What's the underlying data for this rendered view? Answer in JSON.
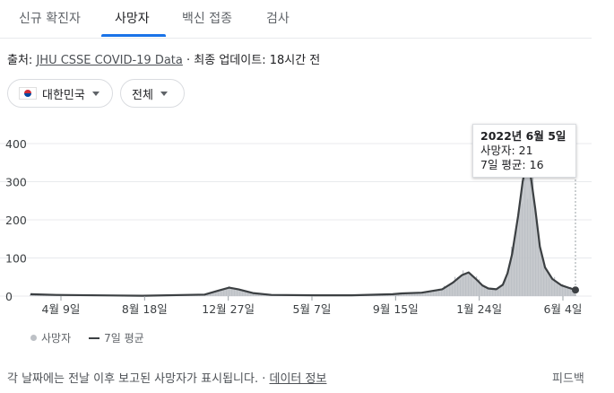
{
  "tabs": [
    {
      "label": "신규 확진자",
      "active": false
    },
    {
      "label": "사망자",
      "active": true
    },
    {
      "label": "백신 접종",
      "active": false
    },
    {
      "label": "검사",
      "active": false
    }
  ],
  "source": {
    "prefix": "출처:",
    "link": "JHU CSSE COVID-19 Data",
    "separator": "·",
    "update_text": "최종 업데이트: 18시간 전"
  },
  "filters": {
    "country": "대한민국",
    "country_icon": "south-korea-flag-icon",
    "range": "전체"
  },
  "tooltip": {
    "date": "2022년 6월 5일",
    "deaths": "사망자: 21",
    "avg": "7일 평균: 16"
  },
  "legend": {
    "daily": "사망자",
    "avg": "7일 평균"
  },
  "footer": {
    "note": "각 날짜에는 전날 이후 보고된 사망자가 표시됩니다.",
    "separator": "·",
    "link": "데이터 정보",
    "feedback": "피드백"
  },
  "colors": {
    "bar": "#bdc1c6",
    "avg_line": "#3c4043",
    "accent": "#1a73e8"
  },
  "chart_data": {
    "type": "area",
    "x_tick_labels": [
      "4월 9일",
      "8월 18일",
      "12월 27일",
      "5월 7일",
      "9월 15일",
      "1월 24일",
      "6월 4일"
    ],
    "y_ticks": [
      0,
      100,
      200,
      300,
      400
    ],
    "ylim": [
      0,
      400
    ],
    "grid": true,
    "legend_position": "bottom-left",
    "series": [
      {
        "name": "사망자",
        "style": "bars"
      },
      {
        "name": "7일 평균",
        "style": "line"
      }
    ],
    "avg_points": [
      [
        "2020-03-01",
        5
      ],
      [
        "2020-04-09",
        3
      ],
      [
        "2020-08-18",
        1
      ],
      [
        "2020-11-20",
        4
      ],
      [
        "2020-12-10",
        14
      ],
      [
        "2020-12-27",
        22
      ],
      [
        "2021-01-10",
        18
      ],
      [
        "2021-02-01",
        8
      ],
      [
        "2021-03-01",
        3
      ],
      [
        "2021-05-07",
        2
      ],
      [
        "2021-07-01",
        2
      ],
      [
        "2021-09-01",
        5
      ],
      [
        "2021-09-15",
        7
      ],
      [
        "2021-10-15",
        9
      ],
      [
        "2021-11-15",
        18
      ],
      [
        "2021-12-01",
        35
      ],
      [
        "2021-12-15",
        55
      ],
      [
        "2021-12-25",
        62
      ],
      [
        "2022-01-05",
        45
      ],
      [
        "2022-01-15",
        28
      ],
      [
        "2022-01-24",
        20
      ],
      [
        "2022-02-05",
        18
      ],
      [
        "2022-02-15",
        30
      ],
      [
        "2022-02-22",
        60
      ],
      [
        "2022-03-01",
        110
      ],
      [
        "2022-03-10",
        210
      ],
      [
        "2022-03-17",
        300
      ],
      [
        "2022-03-22",
        345
      ],
      [
        "2022-03-28",
        330
      ],
      [
        "2022-04-05",
        230
      ],
      [
        "2022-04-12",
        130
      ],
      [
        "2022-04-20",
        75
      ],
      [
        "2022-05-01",
        45
      ],
      [
        "2022-05-15",
        28
      ],
      [
        "2022-06-05",
        16
      ]
    ],
    "highlight": {
      "date": "2022-06-05",
      "deaths": 21,
      "avg": 16
    }
  }
}
